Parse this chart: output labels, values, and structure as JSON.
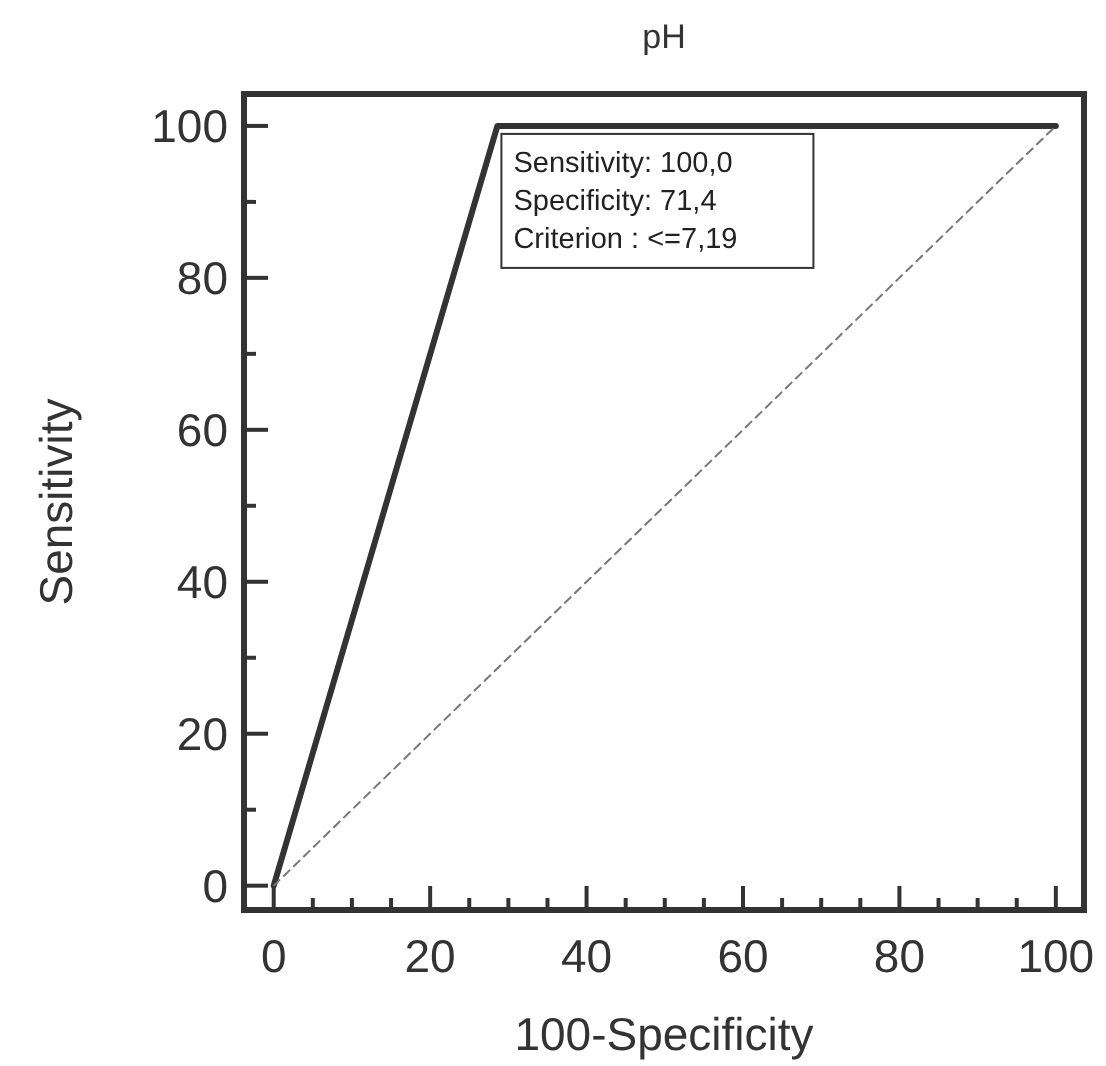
{
  "chart_data": {
    "type": "line",
    "title": "pH",
    "xlabel": "100-Specificity",
    "ylabel": "Sensitivity",
    "xlim": [
      -3.8,
      103.6
    ],
    "ylim": [
      -3.2,
      104.2
    ],
    "xticks": [
      0,
      {
        "value": 5,
        "label": null
      },
      {
        "value": 10,
        "label": null
      },
      {
        "value": 15,
        "label": null
      },
      20,
      {
        "value": 25,
        "label": null
      },
      {
        "value": 30,
        "label": null
      },
      {
        "value": 35,
        "label": null
      },
      40,
      {
        "value": 45,
        "label": null
      },
      {
        "value": 50,
        "label": null
      },
      {
        "value": 55,
        "label": null
      },
      60,
      {
        "value": 65,
        "label": null
      },
      {
        "value": 70,
        "label": null
      },
      {
        "value": 75,
        "label": null
      },
      80,
      {
        "value": 85,
        "label": null
      },
      {
        "value": 90,
        "label": null
      },
      {
        "value": 95,
        "label": null
      },
      100
    ],
    "yticks": [
      0,
      {
        "value": 10,
        "label": null
      },
      20,
      {
        "value": 30,
        "label": null
      },
      40,
      {
        "value": 50,
        "label": null
      },
      60,
      {
        "value": 70,
        "label": null
      },
      80,
      {
        "value": 90,
        "label": null
      },
      100
    ],
    "grid": false,
    "marker": "none",
    "series": [
      {
        "color": "#333333",
        "x": [
          0,
          28.6,
          100
        ],
        "values": [
          0,
          100,
          100
        ],
        "line_style": "solid"
      },
      {
        "color": "#777777",
        "x": [
          0,
          100
        ],
        "values": [
          0,
          100
        ],
        "line_style": "dashed"
      }
    ],
    "annotations": [
      {
        "text": "Sensitivity: 100,0\nSpecificity: 71,4\nCriterion : <=7,19",
        "x": 28.6,
        "y": 100
      }
    ]
  }
}
